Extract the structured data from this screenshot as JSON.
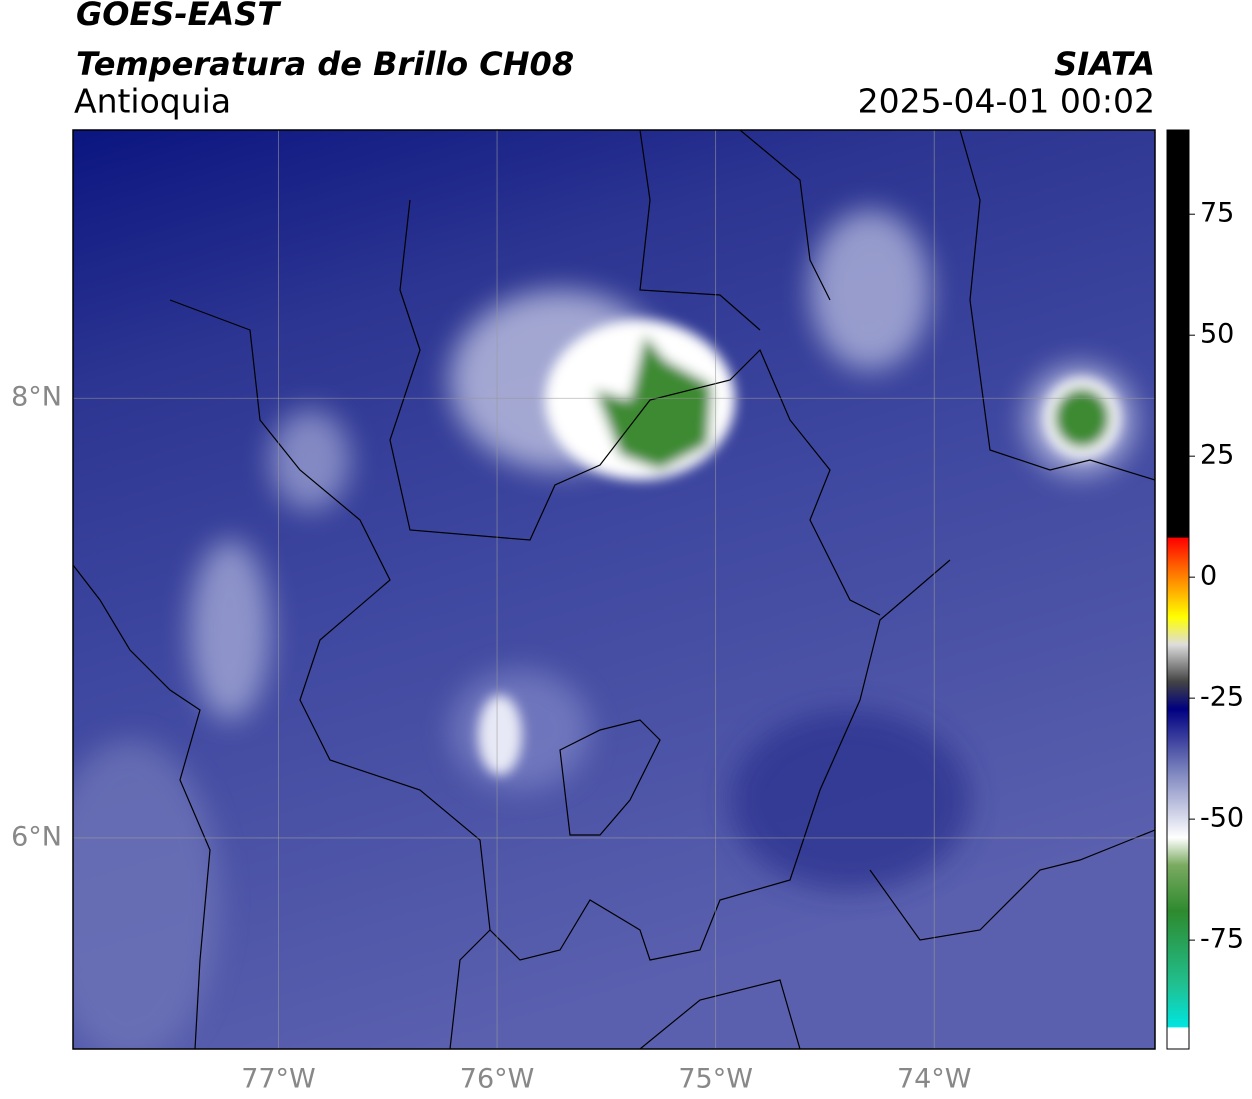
{
  "header": {
    "title": "GOES-EAST",
    "subtitle": "Temperatura de Brillo CH08",
    "region": "Antioquia",
    "source": "SIATA",
    "datetime": "2025-04-01 00:02"
  },
  "map": {
    "lonlim": [
      -77.94,
      -72.99
    ],
    "latlim": [
      5.04,
      9.22
    ],
    "lon_ticks": [
      {
        "value": -77,
        "label": "77°W"
      },
      {
        "value": -76,
        "label": "76°W"
      },
      {
        "value": -75,
        "label": "75°W"
      },
      {
        "value": -74,
        "label": "74°W"
      }
    ],
    "lat_ticks": [
      {
        "value": 8,
        "label": "8°N"
      },
      {
        "value": 6,
        "label": "6°N"
      }
    ]
  },
  "colorbar": {
    "lim": [
      -97.5,
      92.4
    ],
    "ticks": [
      75,
      50,
      25,
      0,
      -25,
      -50,
      -75
    ]
  }
}
